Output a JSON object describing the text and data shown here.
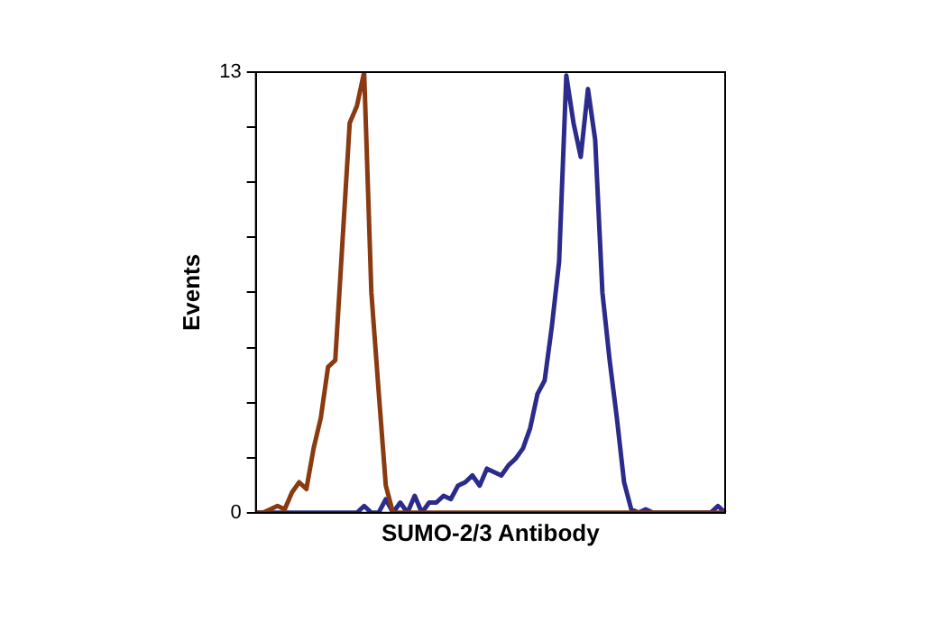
{
  "chart_data": {
    "type": "line",
    "xlabel": "SUMO-2/3 Antibody",
    "ylabel": "Events",
    "tick_labels": "y",
    "categories": [
      null,
      null,
      null,
      null,
      null,
      null,
      null,
      null,
      null,
      null,
      null,
      null,
      null,
      null,
      null,
      null,
      null,
      null,
      null,
      null,
      null,
      null,
      null,
      null,
      null,
      null,
      null,
      null,
      null,
      null,
      null,
      null,
      null,
      null,
      null,
      null,
      null,
      null,
      null,
      null,
      null,
      null,
      null,
      null,
      null,
      null,
      null,
      null,
      null,
      null,
      null,
      null,
      null,
      null,
      null,
      null,
      null,
      null,
      null,
      null,
      null,
      null,
      null,
      null,
      null,
      null
    ],
    "series": [
      {
        "color": "#8a3a10",
        "values": [
          0,
          0,
          0.1,
          0.2,
          0.1,
          0.6,
          0.9,
          0.7,
          1.9,
          2.8,
          4.3,
          4.5,
          8,
          11.5,
          12,
          13,
          6.5,
          3.6,
          0.8,
          0,
          0,
          0,
          0,
          0,
          0,
          0,
          0,
          0,
          0,
          0,
          0,
          0,
          0,
          0,
          0,
          0,
          0,
          0,
          0,
          0,
          0,
          0,
          0,
          0,
          0,
          0,
          0,
          0,
          0,
          0,
          0,
          0,
          0,
          0,
          0,
          0,
          0,
          0,
          0,
          0,
          0,
          0,
          0,
          0,
          0,
          0
        ]
      },
      {
        "color": "#2b2b8c",
        "values": [
          0,
          0,
          0,
          0,
          0,
          0,
          0,
          0,
          0,
          0,
          0,
          0,
          0,
          0,
          0,
          0.2,
          0,
          0,
          0.4,
          0,
          0.3,
          0,
          0.5,
          0,
          0.3,
          0.3,
          0.5,
          0.4,
          0.8,
          0.9,
          1.1,
          0.8,
          1.3,
          1.2,
          1.1,
          1.4,
          1.6,
          1.9,
          2.5,
          3.5,
          3.9,
          5.5,
          7.4,
          12.9,
          11.5,
          10.5,
          12.5,
          11,
          6.5,
          4.5,
          2.8,
          0.9,
          0.1,
          0,
          0.1,
          0,
          0,
          0,
          0,
          0,
          0,
          0,
          0,
          0,
          0.2,
          0
        ]
      }
    ],
    "ylim": [
      0,
      13
    ],
    "yticks": [
      0,
      {
        "value": 1.625,
        "label": null
      },
      {
        "value": 3.25,
        "label": null
      },
      {
        "value": 4.875,
        "label": null
      },
      {
        "value": 6.5,
        "label": null
      },
      {
        "value": 8.125,
        "label": null
      },
      {
        "value": 9.75,
        "label": null
      },
      {
        "value": 11.375,
        "label": null
      },
      13
    ],
    "grid": false,
    "legend": false
  }
}
